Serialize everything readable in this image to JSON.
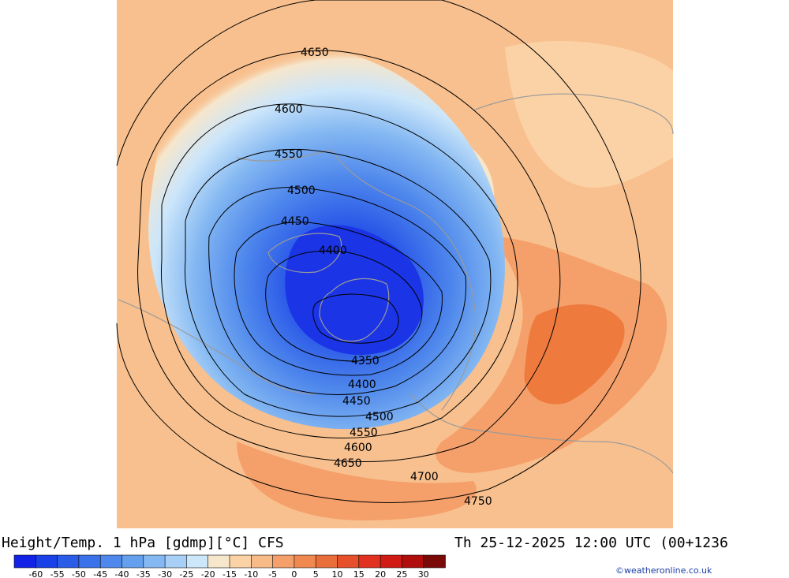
{
  "title": "Height/Temp. 1 hPa [gdmp][°C] CFS",
  "valid_time": "Th 25-12-2025 12:00 UTC (00+1236",
  "credit": "©weatheronline.co.uk",
  "legend": {
    "ticks": [
      "-60",
      "-55",
      "-50",
      "-45",
      "-40",
      "-35",
      "-30",
      "-25",
      "-20",
      "-15",
      "-10",
      "-5",
      "0",
      "5",
      "10",
      "15",
      "20",
      "25",
      "30"
    ],
    "colors": [
      "#1222e6",
      "#1a40e8",
      "#2a5ce8",
      "#3a72ea",
      "#4f88ec",
      "#64a0ee",
      "#84b8f2",
      "#a8d0f6",
      "#cce6fa",
      "#f6e6cc",
      "#fbd2a6",
      "#f8bb88",
      "#f5a06a",
      "#f08850",
      "#ea6e3a",
      "#e6502a",
      "#e0321e",
      "#d01a14",
      "#b00e0c",
      "#7a0a08"
    ]
  },
  "contour_labels": [
    "4650",
    "4600",
    "4550",
    "4500",
    "4450",
    "4400",
    "4350",
    "4400",
    "4450",
    "4500",
    "4550",
    "4600",
    "4650",
    "4700",
    "4750"
  ],
  "colors": {
    "warm_background": "#f8c08e",
    "warm_strong": "#ee7a3e",
    "cold_core": "#1e3ee0",
    "contour": "#000000",
    "coast": "#9a9a9a"
  }
}
